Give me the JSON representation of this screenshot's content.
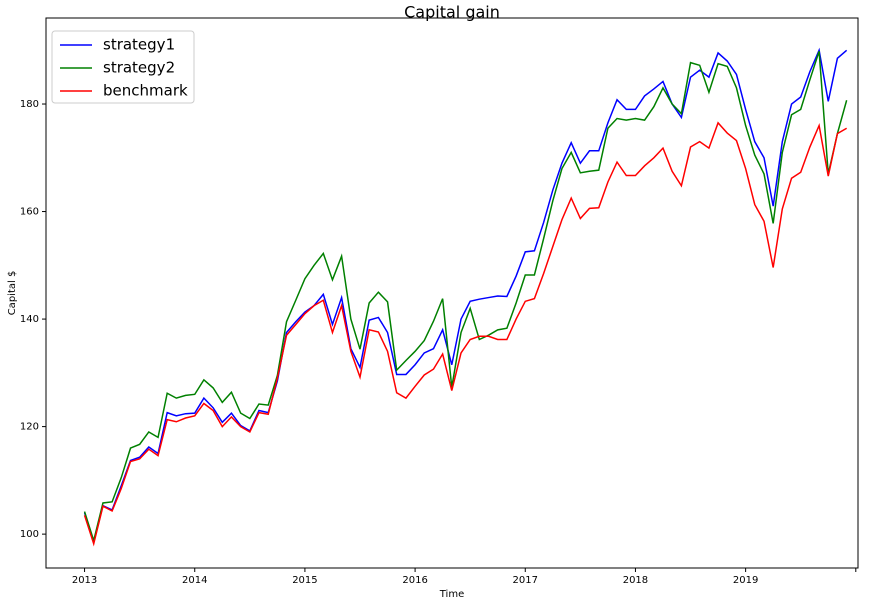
{
  "chart_data": {
    "type": "line",
    "title": "Capital gain",
    "xlabel": "Time",
    "ylabel": "Capital $",
    "x": [
      2013,
      2013.083,
      2013.167,
      2013.25,
      2013.333,
      2013.417,
      2013.5,
      2013.583,
      2013.667,
      2013.75,
      2013.833,
      2013.917,
      2014,
      2014.083,
      2014.167,
      2014.25,
      2014.333,
      2014.417,
      2014.5,
      2014.583,
      2014.667,
      2014.75,
      2014.833,
      2014.917,
      2015,
      2015.083,
      2015.167,
      2015.25,
      2015.333,
      2015.417,
      2015.5,
      2015.583,
      2015.667,
      2015.75,
      2015.833,
      2015.917,
      2016,
      2016.083,
      2016.167,
      2016.25,
      2016.333,
      2016.417,
      2016.5,
      2016.583,
      2016.667,
      2016.75,
      2016.833,
      2016.917,
      2017,
      2017.083,
      2017.167,
      2017.25,
      2017.333,
      2017.417,
      2017.5,
      2017.583,
      2017.667,
      2017.75,
      2017.833,
      2017.917,
      2018,
      2018.083,
      2018.167,
      2018.25,
      2018.333,
      2018.417,
      2018.5,
      2018.583,
      2018.667,
      2018.75,
      2018.833,
      2018.917,
      2019,
      2019.083,
      2019.167,
      2019.25,
      2019.333,
      2019.417,
      2019.5,
      2019.583,
      2019.667,
      2019.75,
      2019.833,
      2019.917
    ],
    "series": [
      {
        "name": "strategy1",
        "color": "#0000ff",
        "values": [
          104,
          98.5,
          105.3,
          104.5,
          109,
          113.7,
          114.3,
          116.2,
          115,
          122.6,
          122,
          122.4,
          122.5,
          125.3,
          123.5,
          120.8,
          122.5,
          120.2,
          119.2,
          123,
          122.6,
          128.5,
          137.5,
          139.5,
          141.3,
          142.5,
          144.6,
          139,
          144,
          134.5,
          131,
          139.8,
          140.3,
          137.5,
          129.7,
          129.7,
          131.5,
          133.7,
          134.5,
          138,
          131.5,
          140,
          143.3,
          143.7,
          144,
          144.3,
          144.2,
          148,
          152.5,
          152.7,
          158,
          164,
          169,
          172.8,
          169,
          171.3,
          171.3,
          176.5,
          180.8,
          179,
          179,
          181.5,
          182.8,
          184.2,
          180,
          177.5,
          185,
          186.3,
          185,
          189.5,
          188,
          185.5,
          179,
          173,
          170,
          161,
          173,
          180,
          181.3,
          186,
          190,
          180.5,
          188.5,
          190
        ]
      },
      {
        "name": "strategy2",
        "color": "#008000",
        "values": [
          104.2,
          98.8,
          105.8,
          106,
          110.5,
          116,
          116.7,
          119,
          118,
          126.2,
          125.3,
          125.8,
          126,
          128.7,
          127.2,
          124.5,
          126.4,
          122.5,
          121.5,
          124.2,
          124,
          129.5,
          139.5,
          143.5,
          147.5,
          150,
          152.2,
          147.3,
          151.7,
          140,
          134.4,
          143,
          145,
          143.2,
          130.5,
          132.3,
          134,
          136,
          139.6,
          143.8,
          127.3,
          137.5,
          142,
          136.2,
          137,
          138,
          138.3,
          143,
          148.2,
          148.2,
          155,
          162,
          168,
          171,
          167.2,
          167.5,
          167.7,
          175.5,
          177.3,
          177,
          177.3,
          177,
          179.5,
          183,
          180,
          178.2,
          187.7,
          187.2,
          182.2,
          187.5,
          187,
          183,
          176,
          170.5,
          167,
          157.8,
          171,
          178,
          179,
          184.5,
          189.8,
          167,
          174.5,
          180.7
        ]
      },
      {
        "name": "benchmark",
        "color": "#ff0000",
        "values": [
          103.5,
          98.2,
          105.2,
          104.3,
          108.5,
          113.5,
          114,
          115.8,
          114.6,
          121.3,
          120.9,
          121.6,
          122,
          124.3,
          123,
          120,
          121.8,
          120,
          119,
          122.6,
          122.3,
          129,
          137,
          139,
          141,
          142.5,
          143.5,
          137.5,
          142.5,
          134,
          129.2,
          138,
          137.6,
          134,
          126.3,
          125.3,
          127.5,
          129.6,
          130.7,
          133.5,
          126.7,
          133.7,
          136.2,
          136.8,
          136.8,
          136.2,
          136.2,
          140,
          143.3,
          143.8,
          148.5,
          153.5,
          158.5,
          162.5,
          158.7,
          160.6,
          160.7,
          165.5,
          169.2,
          166.7,
          166.7,
          168.5,
          170,
          171.8,
          167.5,
          164.8,
          172,
          173,
          171.8,
          176.5,
          174.6,
          173.2,
          168,
          161.3,
          158.2,
          149.6,
          160.5,
          166.2,
          167.3,
          172,
          176,
          166.6,
          174.5,
          175.5
        ]
      }
    ],
    "xlim": [
      2012.65,
      2020.02
    ],
    "xticks": [
      2013,
      2014,
      2015,
      2016,
      2017,
      2018,
      2019,
      {
        "value": 2020,
        "label": null
      }
    ],
    "ylim": [
      93.7,
      196
    ],
    "yticks": [
      100,
      120,
      140,
      160,
      180
    ],
    "legend": "upper left"
  }
}
